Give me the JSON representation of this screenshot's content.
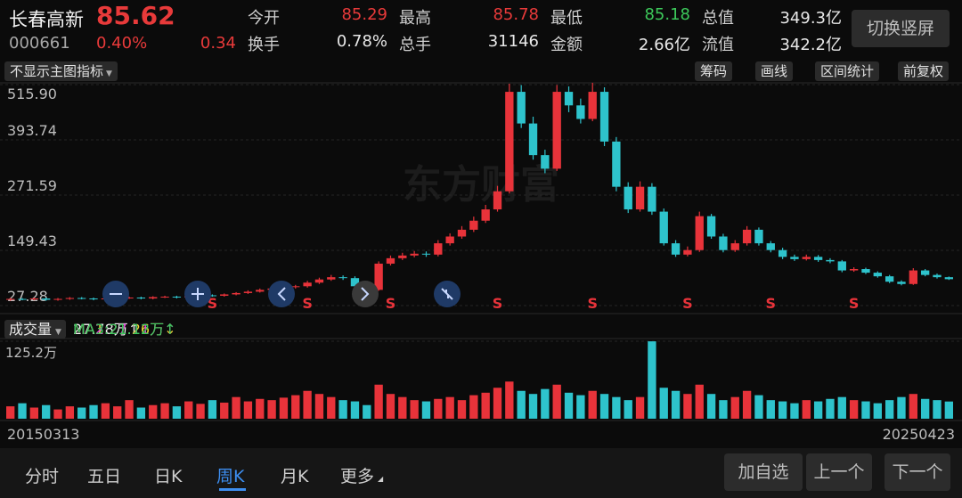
{
  "header": {
    "name": "长春高新",
    "price": "85.62",
    "code": "000661",
    "change_pct": "0.40%",
    "change": "0.34",
    "stats": [
      {
        "label": "今开",
        "value": "85.29",
        "color": "#e83a3a"
      },
      {
        "label": "最高",
        "value": "85.78",
        "color": "#e83a3a"
      },
      {
        "label": "最低",
        "value": "85.18",
        "color": "#3cc85a"
      },
      {
        "label": "总值",
        "value": "349.3亿",
        "color": "#e8e8e8"
      },
      {
        "label": "换手",
        "value": "0.78%",
        "color": "#e8e8e8"
      },
      {
        "label": "总手",
        "value": "31146",
        "color": "#e8e8e8"
      },
      {
        "label": "金额",
        "value": "2.66亿",
        "color": "#e8e8e8"
      },
      {
        "label": "流值",
        "value": "342.2亿",
        "color": "#e8e8e8"
      }
    ],
    "toggle_button": "切换竖屏"
  },
  "toolbar": {
    "indicator_menu": "不显示主图指标",
    "buttons": [
      "筹码",
      "画线",
      "区间统计",
      "前复权"
    ]
  },
  "watermark": "东方财富",
  "chart_data": [
    {
      "type": "candlestick",
      "ylim": [
        27.28,
        515.9
      ],
      "yticks": [
        27.28,
        149.43,
        271.59,
        393.74,
        {
          "value": 515.9,
          "label": "515.90"
        }
      ],
      "grid": true,
      "up_color": "#e8333a",
      "down_color": "#2ec3cc",
      "signal_color": "#e8333a",
      "open": [
        40,
        42,
        41,
        43,
        40,
        42,
        44,
        43,
        41,
        43,
        44,
        45,
        43,
        46,
        47,
        45,
        48,
        50,
        49,
        52,
        55,
        58,
        62,
        65,
        68,
        70,
        78,
        85,
        90,
        88,
        70,
        62,
        120,
        132,
        138,
        142,
        140,
        165,
        180,
        195,
        215,
        240,
        280,
        500,
        430,
        360,
        330,
        500,
        470,
        440,
        500,
        390,
        290,
        240,
        290,
        235,
        165,
        140,
        150,
        225,
        180,
        150,
        165,
        195,
        165,
        150,
        135,
        130,
        135,
        128,
        125,
        105,
        108,
        100,
        92,
        80,
        75,
        105,
        95,
        90
      ],
      "high": [
        44,
        44,
        45,
        45,
        44,
        46,
        46,
        45,
        45,
        46,
        47,
        47,
        48,
        49,
        49,
        50,
        52,
        52,
        54,
        57,
        61,
        65,
        68,
        71,
        73,
        82,
        89,
        95,
        94,
        92,
        73,
        125,
        138,
        144,
        148,
        147,
        172,
        187,
        203,
        224,
        250,
        292,
        518,
        515,
        445,
        372,
        515,
        512,
        485,
        520,
        510,
        400,
        300,
        302,
        298,
        242,
        172,
        158,
        235,
        230,
        186,
        172,
        203,
        200,
        170,
        155,
        140,
        140,
        139,
        132,
        128,
        112,
        111,
        103,
        95,
        83,
        110,
        108,
        98,
        91.5
      ],
      "low": [
        38,
        39,
        39,
        38,
        38,
        40,
        41,
        39,
        39,
        41,
        42,
        41,
        41,
        44,
        43,
        43,
        46,
        47,
        47,
        50,
        53,
        56,
        59,
        62,
        65,
        67,
        75,
        82,
        84,
        67,
        58,
        60,
        116,
        128,
        134,
        135,
        136,
        160,
        175,
        190,
        210,
        235,
        275,
        420,
        350,
        320,
        325,
        455,
        430,
        435,
        380,
        280,
        232,
        235,
        228,
        160,
        135,
        136,
        146,
        175,
        145,
        146,
        160,
        160,
        145,
        130,
        126,
        127,
        124,
        121,
        101,
        102,
        97,
        89,
        77,
        72,
        73,
        92,
        87,
        84
      ],
      "close": [
        42,
        41,
        43,
        40,
        42,
        44,
        43,
        41,
        43,
        44,
        45,
        43,
        46,
        47,
        45,
        48,
        50,
        49,
        52,
        55,
        58,
        62,
        65,
        68,
        70,
        78,
        85,
        90,
        88,
        70,
        62,
        120,
        132,
        138,
        142,
        140,
        165,
        180,
        195,
        215,
        240,
        280,
        500,
        430,
        360,
        330,
        500,
        470,
        440,
        500,
        390,
        290,
        240,
        290,
        235,
        165,
        140,
        150,
        225,
        180,
        150,
        165,
        195,
        165,
        150,
        135,
        130,
        135,
        128,
        125,
        105,
        108,
        100,
        92,
        80,
        75,
        105,
        95,
        90,
        85.62
      ],
      "signals": [
        null,
        null,
        null,
        null,
        null,
        null,
        null,
        null,
        null,
        null,
        null,
        null,
        null,
        null,
        null,
        null,
        null,
        "S",
        null,
        null,
        null,
        null,
        null,
        null,
        null,
        "S",
        null,
        null,
        null,
        null,
        null,
        null,
        "S",
        null,
        null,
        null,
        null,
        null,
        null,
        null,
        null,
        "S",
        null,
        null,
        null,
        null,
        null,
        null,
        null,
        "S",
        null,
        null,
        null,
        null,
        null,
        null,
        null,
        "S",
        null,
        null,
        null,
        null,
        null,
        null,
        "S",
        null,
        null,
        null,
        null,
        null,
        null,
        "S",
        null,
        null,
        null,
        null,
        null,
        null,
        null,
        null
      ]
    },
    {
      "type": "bar",
      "title": "成交量",
      "legend": [
        {
          "text": "27.78万↑",
          "color": "#f2f2f2"
        },
        {
          "text": "MA1:27.26万↓",
          "color": "#e8d23a"
        },
        {
          "text": "MA2:27.11万↑",
          "color": "#e040e0"
        },
        {
          "text": "MA3:21.12万↑",
          "color": "#3cc85a"
        }
      ],
      "ylim": [
        0,
        125.2
      ],
      "yticks": [
        {
          "value": 125.2,
          "label": "125.2万"
        }
      ],
      "values": [
        20,
        25,
        18,
        22,
        15,
        20,
        18,
        22,
        25,
        20,
        30,
        18,
        22,
        25,
        20,
        28,
        24,
        30,
        26,
        35,
        28,
        32,
        30,
        34,
        38,
        45,
        40,
        35,
        30,
        28,
        22,
        55,
        40,
        35,
        30,
        28,
        32,
        35,
        30,
        38,
        42,
        50,
        60,
        45,
        40,
        48,
        55,
        42,
        38,
        45,
        40,
        35,
        30,
        35,
        125,
        50,
        45,
        40,
        55,
        40,
        30,
        35,
        45,
        38,
        30,
        28,
        25,
        30,
        28,
        32,
        35,
        30,
        28,
        25,
        30,
        35,
        40,
        32,
        30,
        27.78
      ],
      "xlabels": [
        "20150313",
        "20250423"
      ]
    }
  ],
  "tabs": [
    "分时",
    "五日",
    "日K",
    "周K",
    "月K",
    "更多"
  ],
  "active_tab": 3,
  "nav_buttons": [
    "加自选",
    "上一个",
    "下一个"
  ]
}
